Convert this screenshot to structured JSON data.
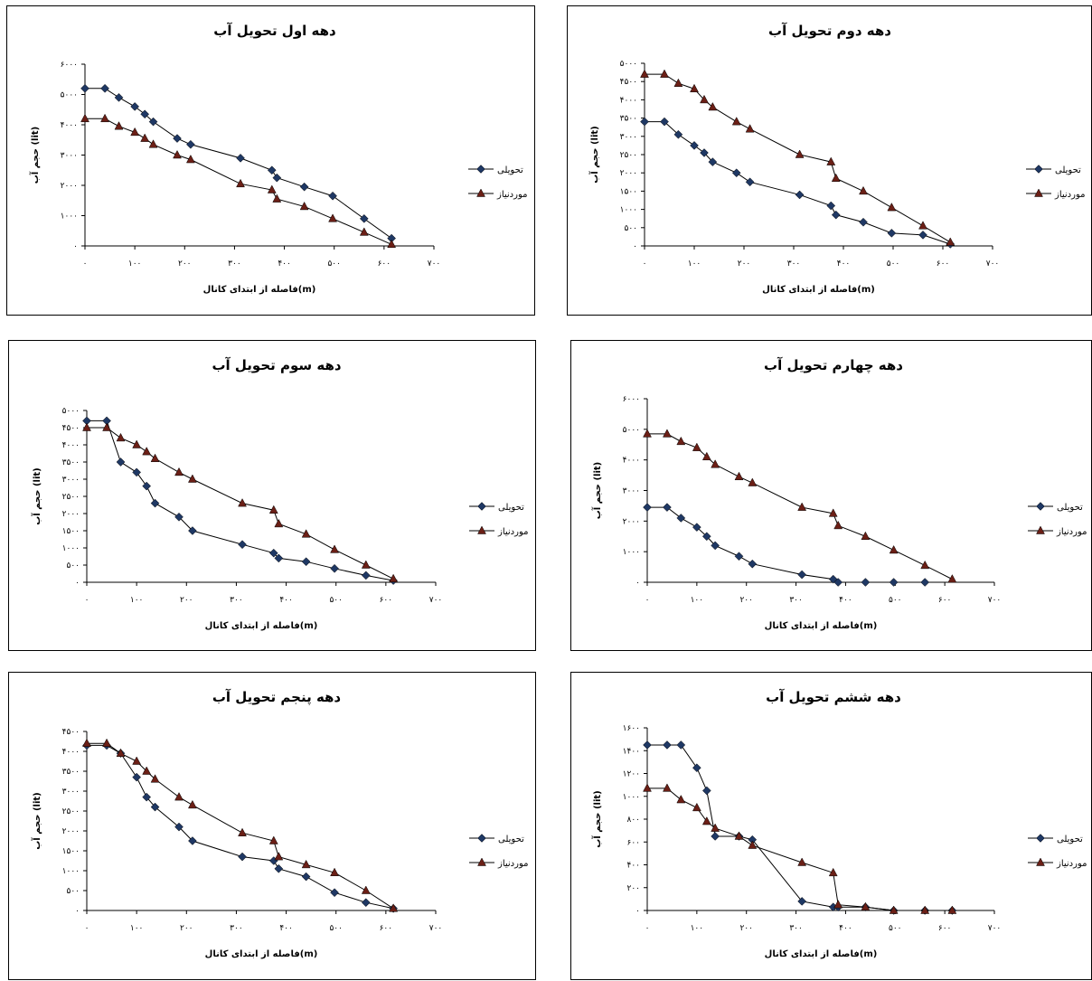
{
  "colors": {
    "series_delivered": "#1f3864",
    "series_required": "#6b1f16",
    "line": "#000000",
    "frame": "#000000"
  },
  "chart_data": [
    {
      "type": "line",
      "title": "دهه اول تحویل آب",
      "xlabel": "فاصله از ابتدای کانال(m)",
      "ylabel": "حجم آب (lit)",
      "xlim": [
        0,
        700
      ],
      "ylim": [
        0,
        6000
      ],
      "xticks": [
        0,
        100,
        200,
        300,
        400,
        500,
        600,
        700
      ],
      "xtick_labels": [
        "۰",
        "۱۰۰",
        "۲۰۰",
        "۳۰۰",
        "۴۰۰",
        "۵۰۰",
        "۶۰۰",
        "۷۰۰"
      ],
      "yticks": [
        0,
        1000,
        2000,
        3000,
        4000,
        5000,
        6000
      ],
      "ytick_labels": [
        "۰",
        "۱۰۰۰",
        "۲۰۰۰",
        "۳۰۰۰",
        "۴۰۰۰",
        "۵۰۰۰",
        "۶۰۰۰"
      ],
      "series": [
        {
          "name": "تحویلی",
          "marker": "diamond",
          "x": [
            0,
            40,
            68,
            100,
            120,
            137,
            185,
            212,
            312,
            375,
            385,
            440,
            497,
            560,
            615
          ],
          "y": [
            5200,
            5200,
            4900,
            4600,
            4350,
            4100,
            3550,
            3350,
            2900,
            2500,
            2250,
            1950,
            1650,
            900,
            250
          ]
        },
        {
          "name": "موردنیاز",
          "marker": "triangle",
          "x": [
            0,
            40,
            68,
            100,
            120,
            137,
            185,
            212,
            312,
            375,
            385,
            440,
            497,
            560,
            615
          ],
          "y": [
            4200,
            4200,
            3950,
            3750,
            3550,
            3350,
            3000,
            2850,
            2050,
            1850,
            1550,
            1300,
            900,
            450,
            50
          ]
        }
      ]
    },
    {
      "type": "line",
      "title": "دهه دوم تحویل آب",
      "xlabel": "فاصله از ابتدای کانال(m)",
      "ylabel": "حجم آب (lit)",
      "xlim": [
        0,
        700
      ],
      "ylim": [
        0,
        5000
      ],
      "xticks": [
        0,
        100,
        200,
        300,
        400,
        500,
        600,
        700
      ],
      "xtick_labels": [
        "۰",
        "۱۰۰",
        "۲۰۰",
        "۳۰۰",
        "۴۰۰",
        "۵۰۰",
        "۶۰۰",
        "۷۰۰"
      ],
      "yticks": [
        0,
        500,
        1000,
        1500,
        2000,
        2500,
        3000,
        3500,
        4000,
        4500,
        5000
      ],
      "ytick_labels": [
        "۰",
        "۵۰۰",
        "۱۰۰۰",
        "۱۵۰۰",
        "۲۰۰۰",
        "۲۵۰۰",
        "۳۰۰۰",
        "۳۵۰۰",
        "۴۰۰۰",
        "۴۵۰۰",
        "۵۰۰۰"
      ],
      "series": [
        {
          "name": "تحویلی",
          "marker": "diamond",
          "x": [
            0,
            40,
            68,
            100,
            120,
            137,
            185,
            212,
            312,
            375,
            385,
            440,
            497,
            560,
            615
          ],
          "y": [
            3400,
            3400,
            3050,
            2750,
            2550,
            2300,
            2000,
            1750,
            1400,
            1100,
            850,
            650,
            350,
            300,
            50
          ]
        },
        {
          "name": "موردنیاز",
          "marker": "triangle",
          "x": [
            0,
            40,
            68,
            100,
            120,
            137,
            185,
            212,
            312,
            375,
            385,
            440,
            497,
            560,
            615
          ],
          "y": [
            4700,
            4700,
            4450,
            4300,
            4000,
            3800,
            3400,
            3200,
            2500,
            2300,
            1850,
            1500,
            1050,
            550,
            100
          ]
        }
      ]
    },
    {
      "type": "line",
      "title": "دهه سوم تحویل آب",
      "xlabel": "فاصله از ابتدای کانال(m)",
      "ylabel": "حجم آب (lit)",
      "xlim": [
        0,
        700
      ],
      "ylim": [
        0,
        5000
      ],
      "xticks": [
        0,
        100,
        200,
        300,
        400,
        500,
        600,
        700
      ],
      "xtick_labels": [
        "۰",
        "۱۰۰",
        "۲۰۰",
        "۳۰۰",
        "۴۰۰",
        "۵۰۰",
        "۶۰۰",
        "۷۰۰"
      ],
      "yticks": [
        0,
        500,
        1000,
        1500,
        2000,
        2500,
        3000,
        3500,
        4000,
        4500,
        5000
      ],
      "ytick_labels": [
        "۰",
        "۵۰۰",
        "۱۰۰۰",
        "۱۵۰۰",
        "۲۰۰۰",
        "۲۵۰۰",
        "۳۰۰۰",
        "۳۵۰۰",
        "۴۰۰۰",
        "۴۵۰۰",
        "۵۰۰۰"
      ],
      "series": [
        {
          "name": "تحویلی",
          "marker": "diamond",
          "x": [
            0,
            40,
            68,
            100,
            120,
            137,
            185,
            212,
            312,
            375,
            385,
            440,
            497,
            560,
            615
          ],
          "y": [
            4700,
            4700,
            3500,
            3200,
            2800,
            2300,
            1900,
            1500,
            1100,
            850,
            700,
            600,
            400,
            200,
            50
          ]
        },
        {
          "name": "موردنیاز",
          "marker": "triangle",
          "x": [
            0,
            40,
            68,
            100,
            120,
            137,
            185,
            212,
            312,
            375,
            385,
            440,
            497,
            560,
            615
          ],
          "y": [
            4500,
            4500,
            4200,
            4000,
            3800,
            3600,
            3200,
            3000,
            2300,
            2100,
            1700,
            1400,
            950,
            500,
            100
          ]
        }
      ]
    },
    {
      "type": "line",
      "title": "دهه چهارم تحویل آب",
      "xlabel": "فاصله از ابتدای کانال(m)",
      "ylabel": "حجم آب (lit)",
      "xlim": [
        0,
        700
      ],
      "ylim": [
        0,
        6000
      ],
      "xticks": [
        0,
        100,
        200,
        300,
        400,
        500,
        600,
        700
      ],
      "xtick_labels": [
        "۰",
        "۱۰۰",
        "۲۰۰",
        "۳۰۰",
        "۴۰۰",
        "۵۰۰",
        "۶۰۰",
        "۷۰۰"
      ],
      "yticks": [
        0,
        1000,
        2000,
        3000,
        4000,
        5000,
        6000
      ],
      "ytick_labels": [
        "۰",
        "۱۰۰۰",
        "۲۰۰۰",
        "۳۰۰۰",
        "۴۰۰۰",
        "۵۰۰۰",
        "۶۰۰۰"
      ],
      "series": [
        {
          "name": "تحویلی",
          "marker": "diamond",
          "x": [
            0,
            40,
            68,
            100,
            120,
            137,
            185,
            212,
            312,
            375,
            385,
            440,
            497,
            560
          ],
          "y": [
            2450,
            2450,
            2100,
            1800,
            1500,
            1200,
            850,
            600,
            250,
            100,
            0,
            0,
            0,
            0
          ]
        },
        {
          "name": "موردنیاز",
          "marker": "triangle",
          "x": [
            0,
            40,
            68,
            100,
            120,
            137,
            185,
            212,
            312,
            375,
            385,
            440,
            497,
            560,
            615
          ],
          "y": [
            4850,
            4850,
            4600,
            4400,
            4100,
            3850,
            3450,
            3250,
            2450,
            2250,
            1850,
            1500,
            1050,
            550,
            100
          ]
        }
      ]
    },
    {
      "type": "line",
      "title": "دهه پنجم تحویل آب",
      "xlabel": "فاصله از ابتدای کانال(m)",
      "ylabel": "حجم آب (lit)",
      "xlim": [
        0,
        700
      ],
      "ylim": [
        0,
        4500
      ],
      "xticks": [
        0,
        100,
        200,
        300,
        400,
        500,
        600,
        700
      ],
      "xtick_labels": [
        "۰",
        "۱۰۰",
        "۲۰۰",
        "۳۰۰",
        "۴۰۰",
        "۵۰۰",
        "۶۰۰",
        "۷۰۰"
      ],
      "yticks": [
        0,
        500,
        1000,
        1500,
        2000,
        2500,
        3000,
        3500,
        4000,
        4500
      ],
      "ytick_labels": [
        "۰",
        "۵۰۰",
        "۱۰۰۰",
        "۱۵۰۰",
        "۲۰۰۰",
        "۲۵۰۰",
        "۳۰۰۰",
        "۳۵۰۰",
        "۴۰۰۰",
        "۴۵۰۰"
      ],
      "series": [
        {
          "name": "تحویلی",
          "marker": "diamond",
          "x": [
            0,
            40,
            68,
            100,
            120,
            137,
            185,
            212,
            312,
            375,
            385,
            440,
            497,
            560,
            615
          ],
          "y": [
            4150,
            4150,
            3950,
            3350,
            2850,
            2600,
            2100,
            1750,
            1350,
            1250,
            1050,
            850,
            450,
            200,
            50
          ]
        },
        {
          "name": "موردنیاز",
          "marker": "triangle",
          "x": [
            0,
            40,
            68,
            100,
            120,
            137,
            185,
            212,
            312,
            375,
            385,
            440,
            497,
            560,
            615
          ],
          "y": [
            4200,
            4200,
            3950,
            3750,
            3500,
            3300,
            2850,
            2650,
            1950,
            1750,
            1350,
            1150,
            950,
            500,
            50
          ]
        }
      ]
    },
    {
      "type": "line",
      "title": "دهه ششم تحویل آب",
      "xlabel": "فاصله از ابتدای کانال(m)",
      "ylabel": "حجم آب (lit)",
      "xlim": [
        0,
        700
      ],
      "ylim": [
        0,
        1600
      ],
      "xticks": [
        0,
        100,
        200,
        300,
        400,
        500,
        600,
        700
      ],
      "xtick_labels": [
        "۰",
        "۱۰۰",
        "۲۰۰",
        "۳۰۰",
        "۴۰۰",
        "۵۰۰",
        "۶۰۰",
        "۷۰۰"
      ],
      "yticks": [
        0,
        200,
        400,
        600,
        800,
        1000,
        1200,
        1400,
        1600
      ],
      "ytick_labels": [
        "۰",
        "۲۰۰",
        "۴۰۰",
        "۶۰۰",
        "۸۰۰",
        "۱۰۰۰",
        "۱۲۰۰",
        "۱۴۰۰",
        "۱۶۰۰"
      ],
      "series": [
        {
          "name": "تحویلی",
          "marker": "diamond",
          "x": [
            0,
            40,
            68,
            100,
            120,
            137,
            185,
            212,
            312,
            375,
            385,
            440,
            497,
            560,
            615
          ],
          "y": [
            1450,
            1450,
            1450,
            1250,
            1050,
            650,
            650,
            620,
            80,
            30,
            30,
            30,
            0,
            0,
            0
          ]
        },
        {
          "name": "موردنیاز",
          "marker": "triangle",
          "x": [
            0,
            40,
            68,
            100,
            120,
            137,
            185,
            212,
            312,
            375,
            385,
            440,
            497,
            560,
            615
          ],
          "y": [
            1070,
            1070,
            970,
            900,
            780,
            720,
            650,
            570,
            420,
            330,
            50,
            30,
            0,
            0,
            0
          ]
        }
      ]
    }
  ]
}
